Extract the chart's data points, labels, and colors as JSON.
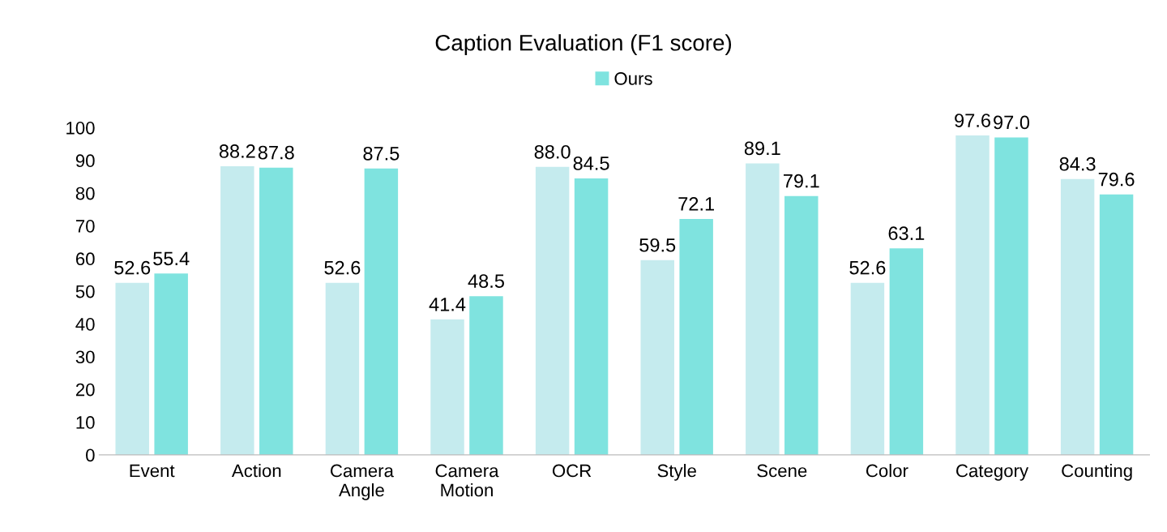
{
  "chart_data": {
    "type": "bar",
    "title": "Caption Evaluation (F1 score)",
    "categories": [
      "Event",
      "Action",
      "Camera\nAngle",
      "Camera\nMotion",
      "OCR",
      "Style",
      "Scene",
      "Color",
      "Category",
      "Counting"
    ],
    "series": [
      {
        "color": "#c5ebee",
        "values": [
          52.6,
          88.2,
          52.6,
          41.4,
          88.0,
          59.5,
          89.1,
          52.6,
          97.6,
          84.3
        ],
        "value_labels": [
          "52.6",
          "88.2",
          "52.6",
          "41.4",
          "88.0",
          "59.5",
          "89.1",
          "52.6",
          "97.6",
          "84.3"
        ]
      },
      {
        "name": "Ours",
        "color": "#7fe3df",
        "values": [
          55.4,
          87.8,
          87.5,
          48.5,
          84.5,
          72.1,
          79.1,
          63.1,
          97.0,
          79.6
        ],
        "value_labels": [
          "55.4",
          "87.8",
          "87.5",
          "48.5",
          "84.5",
          "72.1",
          "79.1",
          "63.1",
          "97.0",
          "79.6"
        ]
      }
    ],
    "ylim": [
      0,
      100
    ],
    "yticks": [
      0,
      10,
      20,
      30,
      40,
      50,
      60,
      70,
      80,
      90,
      100
    ],
    "grid": false,
    "legend": "top",
    "data_labels": true
  }
}
